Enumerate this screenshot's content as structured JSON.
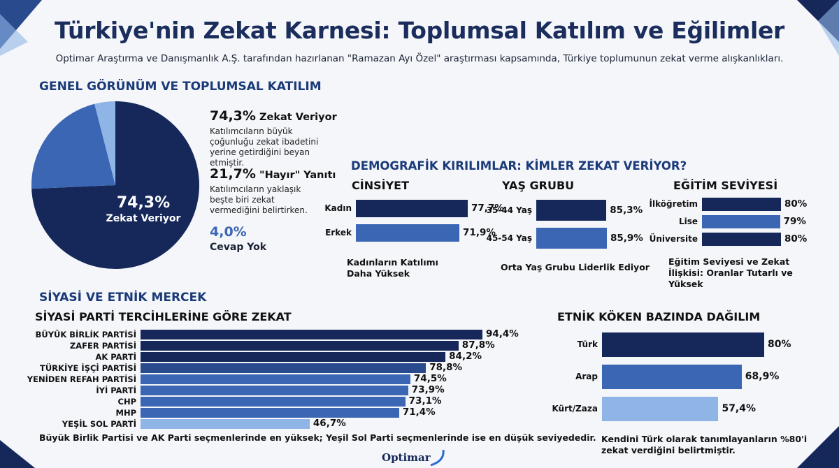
{
  "header": {
    "title": "Türkiye'nin Zekat Karnesi:  Toplumsal Katılım ve Eğilimler",
    "subtitle": "Optimar Araştırma ve Danışmanlık A.Ş. tarafından hazırlanan \"Ramazan Ayı Özel\" araştırması kapsamında, Türkiye toplumunun zekat verme alışkanlıkları."
  },
  "overview": {
    "heading": "GENEL GÖRÜNÜM VE TOPLUMSAL KATILIM",
    "pie_center_value": "74,3%",
    "pie_center_label": "Zekat Veriyor",
    "stat1_value": "74,3%",
    "stat1_label": "Zekat Veriyor",
    "stat1_desc": "Katılımcıların büyük çoğunluğu zekat ibadetini yerine getirdiğini beyan etmiştir.",
    "stat2_value": "21,7%",
    "stat2_label": "\"Hayır\" Yanıtı",
    "stat2_desc": "Katılımcıların yaklaşık beşte biri zekat vermediğini belirtirken.",
    "stat3_value": "4,0%",
    "stat3_label": "Cevap Yok"
  },
  "demographics": {
    "heading": "DEMOGRAFİK KIRILIMLAR: KİMLER ZEKAT VERİYOR?",
    "gender_title": "CİNSİYET",
    "gender_note": "Kadınların Katılımı Daha Yüksek",
    "age_title": "YAŞ GRUBU",
    "age_note": "Orta Yaş Grubu Liderlik Ediyor",
    "edu_title": "EĞİTİM SEVİYESİ",
    "edu_note": "Eğitim Seviyesi ve Zekat İlişkisi: Oranlar Tutarlı ve Yüksek"
  },
  "political": {
    "section_heading": "SİYASİ VE ETNİK MERCEK",
    "heading": "SİYASİ PARTİ TERCİHLERİNE GÖRE ZEKAT",
    "note": "Büyük Birlik Partisi ve AK Parti seçmenlerinde en yüksek; Yeşil Sol Parti seçmenlerinde ise en düşük seviyededir."
  },
  "ethnic": {
    "heading": "ETNİK KÖKEN BAZINDA DAĞILIM",
    "note": "Kendini Türk olarak tanımlayanların %80'i zekat verdiğini belirtmiştir."
  },
  "logo": {
    "text": "Optimar"
  },
  "colors": {
    "navy": "#16285a",
    "mid": "#3a66b4",
    "light": "#8fb5e6",
    "heading": "#1a3a78"
  },
  "chart_data": [
    {
      "type": "pie",
      "labels": [
        "Zekat Veriyor",
        "\"Hayır\" Yanıtı",
        "Cevap Yok"
      ],
      "values": [
        74.3,
        21.7,
        4.0
      ],
      "value_labels": [
        "74,3%",
        "21,7%",
        "4,0%"
      ],
      "colors": [
        "#16285a",
        "#3a66b4",
        "#8fb5e6"
      ]
    },
    {
      "type": "bar",
      "title": "CİNSİYET",
      "categories": [
        "Kadın",
        "Erkek"
      ],
      "values": [
        77.7,
        71.9
      ],
      "value_labels": [
        "77,7%",
        "71,9%"
      ],
      "colors": [
        "#16285a",
        "#3a66b4"
      ]
    },
    {
      "type": "bar",
      "title": "YAŞ GRUBU",
      "categories": [
        "35-44 Yaş",
        "45-54 Yaş"
      ],
      "values": [
        85.3,
        85.9
      ],
      "value_labels": [
        "85,3%",
        "85,9%"
      ],
      "colors": [
        "#16285a",
        "#3a66b4"
      ]
    },
    {
      "type": "bar",
      "title": "EĞİTİM SEVİYESİ",
      "categories": [
        "İlköğretim",
        "Lise",
        "Üniversite"
      ],
      "values": [
        80,
        79,
        80
      ],
      "value_labels": [
        "80%",
        "79%",
        "80%"
      ],
      "colors": [
        "#16285a",
        "#3a66b4",
        "#16285a"
      ]
    },
    {
      "type": "bar",
      "title": "SİYASİ PARTİ TERCİHLERİNE GÖRE ZEKAT",
      "categories": [
        "BÜYÜK BİRLİK PARTİSİ",
        "ZAFER PARTİSİ",
        "AK PARTİ",
        "TÜRKİYE İŞÇİ PARTİSİ",
        "YENİDEN REFAH PARTİSİ",
        "İYİ PARTİ",
        "CHP",
        "MHP",
        "YEŞİL SOL PARTİ"
      ],
      "values": [
        94.4,
        87.8,
        84.2,
        78.8,
        74.5,
        73.9,
        73.1,
        71.4,
        46.7
      ],
      "value_labels": [
        "94,4%",
        "87,8%",
        "84,2%",
        "78,8%",
        "74,5%",
        "73,9%",
        "73,1%",
        "71,4%",
        "46,7%"
      ],
      "colors": [
        "#16285a",
        "#16285a",
        "#16285a",
        "#2a4a8e",
        "#3a66b4",
        "#3a66b4",
        "#3a66b4",
        "#3a66b4",
        "#8fb5e6"
      ]
    },
    {
      "type": "bar",
      "title": "ETNİK KÖKEN BAZINDA DAĞILIM",
      "categories": [
        "Türk",
        "Arap",
        "Kürt/Zaza"
      ],
      "values": [
        80,
        68.9,
        57.4
      ],
      "value_labels": [
        "80%",
        "68,9%",
        "57,4%"
      ],
      "colors": [
        "#16285a",
        "#3a66b4",
        "#8fb5e6"
      ]
    }
  ]
}
